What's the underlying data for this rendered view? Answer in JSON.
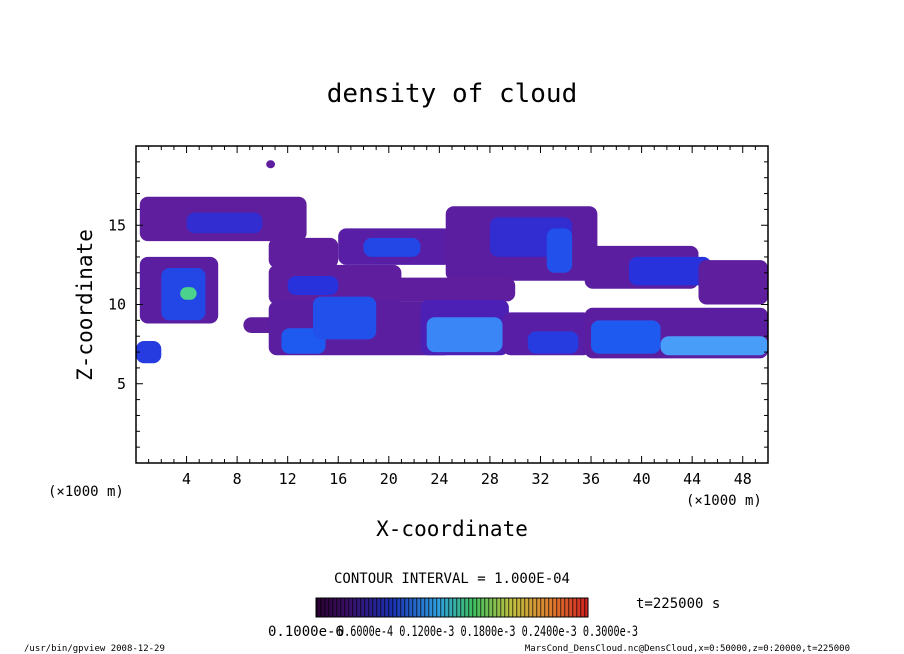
{
  "chart_data": {
    "type": "heatmap",
    "title": "density of cloud",
    "xlabel": "X-coordinate",
    "ylabel": "Z-coordinate",
    "x_unit": "(×1000 m)",
    "y_unit": "(×1000 m)",
    "xlim": [
      0,
      50
    ],
    "ylim": [
      0,
      20
    ],
    "x_ticks": [
      "4",
      "8",
      "12",
      "16",
      "20",
      "24",
      "28",
      "32",
      "36",
      "40",
      "44",
      "48"
    ],
    "y_ticks": [
      "5",
      "10",
      "15"
    ],
    "contour_interval": "CONTOUR INTERVAL = 1.000E-04",
    "time_label": "t=225000 s",
    "colorbar_labels": "0.1000e-6",
    "colorbar_labels_overlap": "0.6000e-4  0.1200e-3  0.1800e-3  0.2400e-3  0.3000e-3",
    "colorbar_range": [
      0,
      0.0003
    ],
    "cloud_regions": [
      {
        "x0": 0.3,
        "x1": 13.5,
        "z0": 14.0,
        "z1": 16.8,
        "level": 0.1
      },
      {
        "x0": 4.0,
        "x1": 10.0,
        "z0": 14.5,
        "z1": 15.8,
        "level": 0.35
      },
      {
        "x0": 10.5,
        "x1": 16.0,
        "z0": 12.3,
        "z1": 14.2,
        "level": 0.1
      },
      {
        "x0": 16.0,
        "x1": 25.0,
        "z0": 12.5,
        "z1": 14.8,
        "level": 0.15
      },
      {
        "x0": 18.0,
        "x1": 22.5,
        "z0": 13.0,
        "z1": 14.2,
        "level": 0.5
      },
      {
        "x0": 24.5,
        "x1": 36.5,
        "z0": 11.5,
        "z1": 16.2,
        "level": 0.12
      },
      {
        "x0": 28.0,
        "x1": 34.5,
        "z0": 13.0,
        "z1": 15.5,
        "level": 0.35
      },
      {
        "x0": 32.5,
        "x1": 34.5,
        "z0": 12.0,
        "z1": 14.8,
        "level": 0.55
      },
      {
        "x0": 35.5,
        "x1": 44.5,
        "z0": 11.0,
        "z1": 13.7,
        "level": 0.12
      },
      {
        "x0": 39.0,
        "x1": 45.5,
        "z0": 11.2,
        "z1": 13.0,
        "level": 0.4
      },
      {
        "x0": 44.5,
        "x1": 50.0,
        "z0": 10.0,
        "z1": 12.8,
        "level": 0.1
      },
      {
        "x0": 10.5,
        "x1": 21.0,
        "z0": 10.0,
        "z1": 12.5,
        "level": 0.1
      },
      {
        "x0": 12.0,
        "x1": 16.0,
        "z0": 10.6,
        "z1": 11.8,
        "level": 0.4
      },
      {
        "x0": 20.0,
        "x1": 30.0,
        "z0": 10.2,
        "z1": 11.7,
        "level": 0.1
      },
      {
        "x0": 0.3,
        "x1": 6.5,
        "z0": 8.8,
        "z1": 13.0,
        "level": 0.12
      },
      {
        "x0": 2.0,
        "x1": 5.5,
        "z0": 9.0,
        "z1": 12.3,
        "level": 0.5
      },
      {
        "x0": 3.5,
        "x1": 4.8,
        "z0": 10.3,
        "z1": 11.1,
        "level": 0.95
      },
      {
        "x0": 8.5,
        "x1": 12.5,
        "z0": 8.2,
        "z1": 9.2,
        "level": 0.1
      },
      {
        "x0": 10.5,
        "x1": 25.0,
        "z0": 6.8,
        "z1": 10.2,
        "level": 0.12
      },
      {
        "x0": 11.5,
        "x1": 15.0,
        "z0": 6.9,
        "z1": 8.5,
        "level": 0.6
      },
      {
        "x0": 14.0,
        "x1": 19.0,
        "z0": 7.8,
        "z1": 10.5,
        "level": 0.55
      },
      {
        "x0": 22.5,
        "x1": 29.5,
        "z0": 6.8,
        "z1": 10.3,
        "level": 0.22
      },
      {
        "x0": 23.0,
        "x1": 29.0,
        "z0": 7.0,
        "z1": 9.2,
        "level": 0.7
      },
      {
        "x0": 29.0,
        "x1": 36.0,
        "z0": 6.8,
        "z1": 9.5,
        "level": 0.15
      },
      {
        "x0": 31.0,
        "x1": 35.0,
        "z0": 6.9,
        "z1": 8.3,
        "level": 0.45
      },
      {
        "x0": 35.5,
        "x1": 50.0,
        "z0": 6.6,
        "z1": 9.8,
        "level": 0.12
      },
      {
        "x0": 36.0,
        "x1": 41.5,
        "z0": 6.9,
        "z1": 9.0,
        "level": 0.6
      },
      {
        "x0": 41.5,
        "x1": 50.0,
        "z0": 6.8,
        "z1": 8.0,
        "level": 0.75
      },
      {
        "x0": 0.0,
        "x1": 2.0,
        "z0": 6.3,
        "z1": 7.7,
        "level": 0.45
      },
      {
        "x0": 10.3,
        "x1": 11.0,
        "z0": 18.6,
        "z1": 19.1,
        "level": 0.1
      }
    ]
  },
  "footer": {
    "left": "/usr/bin/gpview  2008-12-29",
    "right": "MarsCond_DensCloud.nc@DensCloud,x=0:50000,z=0:20000,t=225000"
  }
}
